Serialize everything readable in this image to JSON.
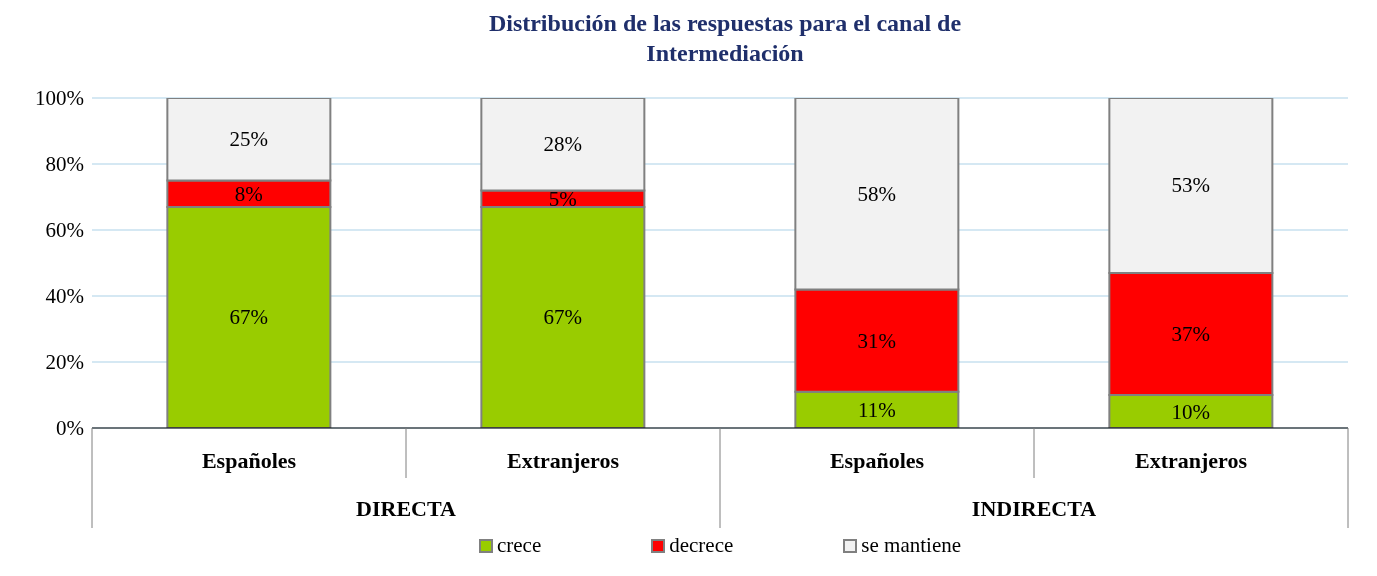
{
  "chart_data": {
    "type": "bar",
    "title": "Distribución de las respuestas para el canal de Intermediación",
    "categories": [
      "Españoles",
      "Extranjeros",
      "Españoles",
      "Extranjeros"
    ],
    "annotations": [
      "DIRECTA",
      "INDIRECTA"
    ],
    "stacked": true,
    "series": [
      {
        "name": "crece",
        "color": "#99cc00",
        "values": [
          67,
          67,
          11,
          10
        ],
        "value_labels": [
          "67%",
          "67%",
          "11%",
          "10%"
        ]
      },
      {
        "name": "decrece",
        "color": "#ff0000",
        "values": [
          8,
          5,
          31,
          37
        ],
        "value_labels": [
          "8%",
          "5%",
          "31%",
          "37%"
        ]
      },
      {
        "name": "se mantiene",
        "color": "#f2f2f2",
        "values": [
          25,
          28,
          58,
          53
        ],
        "value_labels": [
          "25%",
          "28%",
          "58%",
          "53%"
        ]
      }
    ],
    "ylim": [
      0,
      100
    ],
    "yticks": [
      {
        "value": 0,
        "label": "0%"
      },
      {
        "value": 20,
        "label": "20%"
      },
      {
        "value": 40,
        "label": "40%"
      },
      {
        "value": 60,
        "label": "60%"
      },
      {
        "value": 80,
        "label": "80%"
      },
      {
        "value": 100,
        "label": "100%"
      }
    ],
    "grid": "y",
    "legend": "bottom"
  }
}
